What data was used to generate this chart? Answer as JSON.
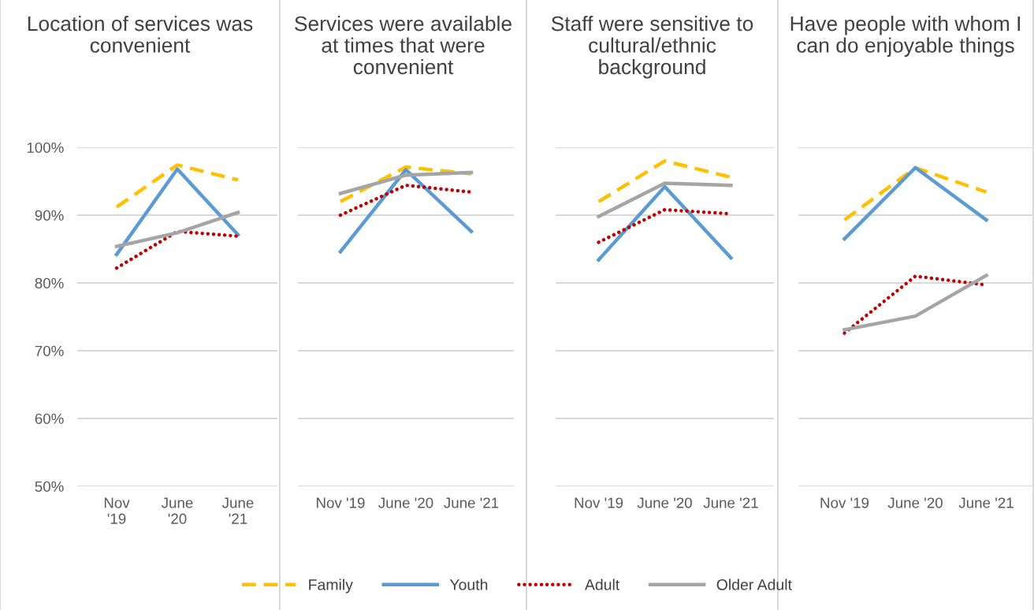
{
  "chart_data": [
    {
      "type": "line",
      "title": "Location of services was convenient",
      "categories": [
        "Nov '19",
        "June '20",
        "June '21"
      ],
      "ylim": [
        50,
        100
      ],
      "yticks": [
        {
          "value": 50,
          "label": "50%"
        },
        {
          "value": 60,
          "label": "60%"
        },
        {
          "value": 70,
          "label": "70%"
        },
        {
          "value": 80,
          "label": "80%"
        },
        {
          "value": 90,
          "label": "90%"
        },
        {
          "value": 100,
          "label": "100%"
        }
      ],
      "grid": "y",
      "legend": "bottom",
      "series": [
        {
          "name": "Family",
          "color": "#ffc000",
          "line_style": "dashed",
          "values": [
            91.2,
            97.4,
            95.2
          ]
        },
        {
          "name": "Youth",
          "color": "#5b9bd5",
          "line_style": "solid",
          "values": [
            84.2,
            96.8,
            87.1
          ]
        },
        {
          "name": "Adult",
          "color": "#c00000",
          "line_style": "dotted",
          "values": [
            82.2,
            87.6,
            86.9
          ]
        },
        {
          "name": "Older Adult",
          "color": "#a5a5a5",
          "line_style": "solid",
          "values": [
            85.4,
            87.4,
            90.4
          ]
        }
      ]
    },
    {
      "type": "line",
      "title": "Services were available at times that were convenient",
      "categories": [
        "Nov '19",
        "June '20",
        "June '21"
      ],
      "ylim": [
        50,
        100
      ],
      "yticks": [
        50,
        60,
        70,
        80,
        90,
        100
      ],
      "grid": "y",
      "tick_labels": "x",
      "legend": "bottom",
      "series": [
        {
          "color": "#ffc000",
          "line_style": "dashed",
          "values": [
            92.0,
            97.1,
            96.1
          ]
        },
        {
          "color": "#5b9bd5",
          "line_style": "solid",
          "values": [
            84.6,
            96.7,
            87.6
          ]
        },
        {
          "color": "#c00000",
          "line_style": "dotted",
          "values": [
            90.0,
            94.4,
            93.4
          ]
        },
        {
          "color": "#a5a5a5",
          "line_style": "solid",
          "values": [
            93.2,
            95.9,
            96.3
          ]
        }
      ]
    },
    {
      "type": "line",
      "title": "Staff were sensitive to cultural/ethnic background",
      "categories": [
        "Nov '19",
        "June '20",
        "June '21"
      ],
      "ylim": [
        50,
        100
      ],
      "yticks": [
        50,
        60,
        70,
        80,
        90,
        100
      ],
      "grid": "y",
      "tick_labels": "x",
      "legend": "bottom",
      "series": [
        {
          "color": "#ffc000",
          "line_style": "dashed",
          "values": [
            92.0,
            98.0,
            95.6
          ]
        },
        {
          "color": "#5b9bd5",
          "line_style": "solid",
          "values": [
            83.4,
            94.2,
            83.7
          ]
        },
        {
          "color": "#c00000",
          "line_style": "dotted",
          "values": [
            86.0,
            90.8,
            90.2
          ]
        },
        {
          "color": "#a5a5a5",
          "line_style": "solid",
          "values": [
            89.8,
            94.7,
            94.4
          ]
        }
      ]
    },
    {
      "type": "line",
      "title": "Have people with whom I can do enjoyable things",
      "categories": [
        "Nov '19",
        "June '20",
        "June '21"
      ],
      "ylim": [
        50,
        100
      ],
      "yticks": [
        50,
        60,
        70,
        80,
        90,
        100
      ],
      "grid": "y",
      "tick_labels": "x",
      "legend": "bottom",
      "series": [
        {
          "color": "#ffc000",
          "line_style": "dashed",
          "values": [
            89.3,
            97.0,
            93.4
          ]
        },
        {
          "color": "#5b9bd5",
          "line_style": "solid",
          "values": [
            86.5,
            97.0,
            89.3
          ]
        },
        {
          "color": "#c00000",
          "line_style": "dotted",
          "values": [
            72.6,
            81.0,
            79.7
          ]
        },
        {
          "color": "#a5a5a5",
          "line_style": "solid",
          "values": [
            73.1,
            75.1,
            81.1
          ]
        }
      ]
    }
  ]
}
